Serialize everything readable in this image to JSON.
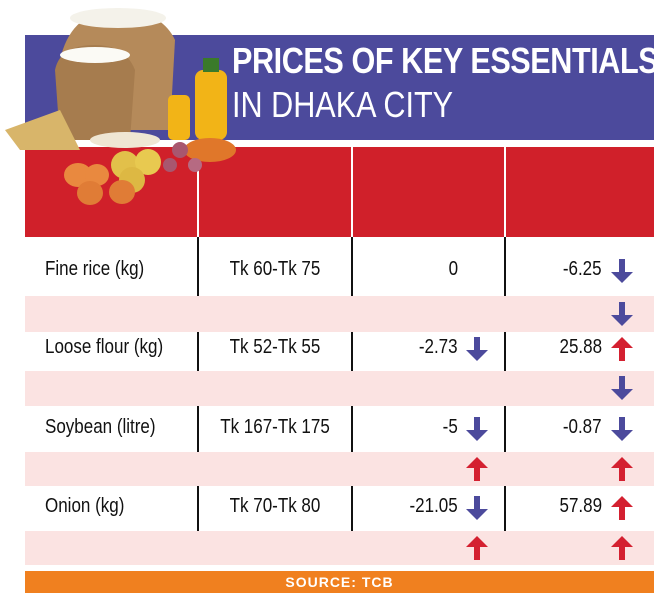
{
  "title_line1": "PRICES OF KEY ESSENTIALS",
  "title_line2": "IN DHAKA CITY",
  "colors": {
    "banner": "#4c4a9c",
    "header": "#d0202a",
    "pink_row": "#fbe3e2",
    "down": "#4c4a9c",
    "up": "#d42030",
    "source_bar": "#f0801f"
  },
  "rows": [
    {
      "item": "Fine rice (kg)",
      "price": "Tk 60-Tk 75",
      "change1": "0",
      "arrow1": "none",
      "change2": "-6.25",
      "arrow2": "down",
      "sub_arrow1": "none",
      "sub_arrow2": "down"
    },
    {
      "item": "Loose flour (kg)",
      "price": "Tk 52-Tk 55",
      "change1": "-2.73",
      "arrow1": "down",
      "change2": "25.88",
      "arrow2": "up",
      "sub_arrow1": "none",
      "sub_arrow2": "down"
    },
    {
      "item": "Soybean (litre)",
      "price": "Tk 167-Tk 175",
      "change1": "-5",
      "arrow1": "down",
      "change2": "-0.87",
      "arrow2": "down",
      "sub_arrow1": "up",
      "sub_arrow2": "up"
    },
    {
      "item": "Onion (kg)",
      "price": "Tk 70-Tk 80",
      "change1": "-21.05",
      "arrow1": "down",
      "change2": "57.89",
      "arrow2": "up",
      "sub_arrow1": "up",
      "sub_arrow2": "up"
    }
  ],
  "source": "SOURCE: TCB"
}
